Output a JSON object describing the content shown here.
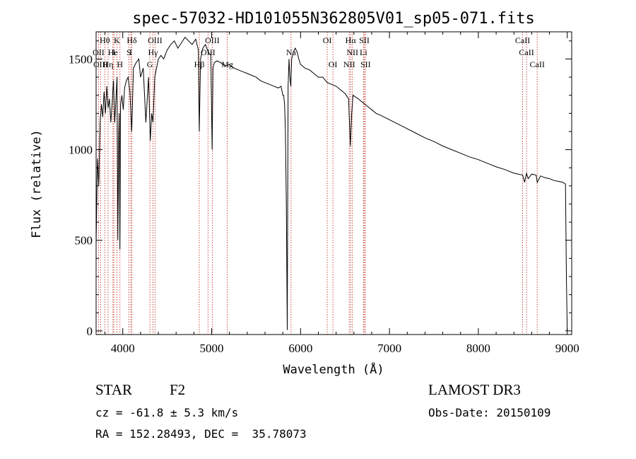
{
  "chart_data": {
    "type": "line",
    "title": "spec-57032-HD101055N362805V01_sp05-071.fits",
    "xlabel": "Wavelength (Å)",
    "ylabel": "Flux (relative)",
    "xlim": [
      3700,
      9050
    ],
    "ylim": [
      -20,
      1650
    ],
    "xticks": [
      4000,
      5000,
      6000,
      7000,
      8000,
      9000
    ],
    "yticks": [
      0,
      500,
      1000,
      1500
    ],
    "grid": false,
    "series": [
      {
        "name": "spectrum",
        "x": [
          3700,
          3715,
          3730,
          3745,
          3760,
          3775,
          3790,
          3805,
          3820,
          3835,
          3850,
          3865,
          3880,
          3895,
          3910,
          3925,
          3935,
          3945,
          3955,
          3960,
          3968,
          3975,
          3990,
          4005,
          4020,
          4040,
          4060,
          4080,
          4101,
          4120,
          4150,
          4180,
          4200,
          4230,
          4260,
          4290,
          4310,
          4325,
          4340,
          4360,
          4380,
          4400,
          4430,
          4460,
          4500,
          4540,
          4580,
          4620,
          4660,
          4700,
          4740,
          4780,
          4820,
          4850,
          4861,
          4875,
          4900,
          4930,
          4960,
          4990,
          5005,
          5015,
          5030,
          5060,
          5100,
          5150,
          5200,
          5250,
          5300,
          5350,
          5400,
          5450,
          5500,
          5550,
          5600,
          5650,
          5700,
          5750,
          5780,
          5800,
          5810,
          5820,
          5830,
          5840,
          5850,
          5860,
          5870,
          5880,
          5890,
          5900,
          5920,
          5940,
          5960,
          5980,
          6000,
          6050,
          6100,
          6150,
          6200,
          6250,
          6300,
          6350,
          6400,
          6450,
          6500,
          6540,
          6560,
          6575,
          6590,
          6620,
          6650,
          6700,
          6750,
          6800,
          6850,
          6900,
          7000,
          7100,
          7200,
          7300,
          7400,
          7500,
          7600,
          7700,
          7800,
          7900,
          8000,
          8100,
          8200,
          8300,
          8400,
          8498,
          8520,
          8542,
          8560,
          8600,
          8650,
          8662,
          8700,
          8750,
          8800,
          8850,
          8900,
          8950,
          8980,
          8990,
          9000
        ],
        "values": [
          480,
          950,
          800,
          1150,
          1250,
          1180,
          1320,
          1200,
          1350,
          1230,
          1280,
          1150,
          1250,
          1380,
          1150,
          1300,
          1400,
          500,
          1100,
          1200,
          450,
          1250,
          1300,
          1220,
          1340,
          1380,
          1400,
          1320,
          1100,
          1450,
          1480,
          1500,
          1400,
          1450,
          1150,
          1400,
          1050,
          1200,
          1150,
          1400,
          1450,
          1500,
          1520,
          1500,
          1550,
          1580,
          1600,
          1560,
          1590,
          1620,
          1600,
          1580,
          1610,
          1550,
          1100,
          1500,
          1560,
          1580,
          1540,
          1520,
          1000,
          1450,
          1480,
          1490,
          1480,
          1460,
          1470,
          1450,
          1440,
          1430,
          1420,
          1410,
          1400,
          1380,
          1370,
          1360,
          1350,
          1340,
          1350,
          1300,
          1300,
          1250,
          1100,
          700,
          5,
          1350,
          1500,
          1400,
          1350,
          1500,
          1540,
          1560,
          1540,
          1500,
          1470,
          1450,
          1440,
          1420,
          1400,
          1400,
          1370,
          1360,
          1350,
          1330,
          1310,
          1280,
          1020,
          1200,
          1300,
          1290,
          1280,
          1260,
          1240,
          1220,
          1200,
          1190,
          1165,
          1140,
          1115,
          1090,
          1065,
          1045,
          1020,
          1000,
          980,
          960,
          945,
          925,
          905,
          890,
          870,
          860,
          820,
          870,
          840,
          865,
          860,
          820,
          855,
          845,
          840,
          830,
          825,
          820,
          810,
          300,
          0
        ]
      }
    ],
    "lines": [
      {
        "name": "Hθ",
        "x": 3798,
        "row": 1
      },
      {
        "name": "K",
        "x": 3934,
        "row": 1
      },
      {
        "name": "Hδ",
        "x": 4102,
        "row": 1
      },
      {
        "name": "OIII",
        "x": 4363,
        "row": 1
      },
      {
        "name": "OIII",
        "x": 5007,
        "row": 1
      },
      {
        "name": "OI",
        "x": 6300,
        "row": 1
      },
      {
        "name": "Hα",
        "x": 6563,
        "row": 1
      },
      {
        "name": "SII",
        "x": 6717,
        "row": 1
      },
      {
        "name": "CaII",
        "x": 8498,
        "row": 1
      },
      {
        "name": "OII",
        "x": 3727,
        "row": 2
      },
      {
        "name": "He",
        "x": 3889,
        "row": 2
      },
      {
        "name": "I",
        "x": 3900,
        "row": 2
      },
      {
        "name": "S",
        "x": 4068,
        "row": 2
      },
      {
        "name": "I",
        "x": 4090,
        "row": 2
      },
      {
        "name": "Hγ",
        "x": 4340,
        "row": 2
      },
      {
        "name": "OIII",
        "x": 4959,
        "row": 2
      },
      {
        "name": "Na",
        "x": 5893,
        "row": 2
      },
      {
        "name": "NII",
        "x": 6583,
        "row": 2
      },
      {
        "name": "Li",
        "x": 6708,
        "row": 2
      },
      {
        "name": "CaII",
        "x": 8542,
        "row": 2
      },
      {
        "name": "OIII",
        "x": 3750,
        "row": 3
      },
      {
        "name": "Hη",
        "x": 3835,
        "row": 3
      },
      {
        "name": "H",
        "x": 3968,
        "row": 3
      },
      {
        "name": "G",
        "x": 4305,
        "row": 3
      },
      {
        "name": "Hβ",
        "x": 4861,
        "row": 3
      },
      {
        "name": "Mg",
        "x": 5175,
        "row": 3
      },
      {
        "name": "OI",
        "x": 6364,
        "row": 3
      },
      {
        "name": "NII",
        "x": 6548,
        "row": 3
      },
      {
        "name": "SII",
        "x": 6731,
        "row": 3
      },
      {
        "name": "CaII",
        "x": 8662,
        "row": 3
      }
    ]
  },
  "info": {
    "object_type": "STAR",
    "subclass": "F2",
    "survey": "LAMOST DR3",
    "cz": "cz = -61.8 ± 5.3 km/s",
    "obs_date": "Obs-Date: 20150109",
    "coords": "RA = 152.28493, DEC =  35.78073"
  }
}
